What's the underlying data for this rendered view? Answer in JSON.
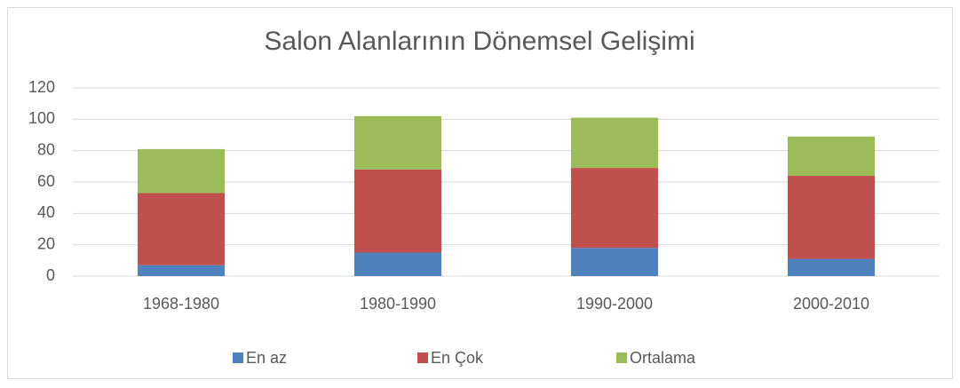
{
  "chart_data": {
    "type": "stacked_bar",
    "title": "Salon Alanlarının Dönemsel Gelişimi",
    "categories": [
      "1968-1980",
      "1980-1990",
      "1990-2000",
      "2000-2010"
    ],
    "series": [
      {
        "name": "En az",
        "color": "#4f81bd",
        "values": [
          7,
          15,
          18,
          11
        ]
      },
      {
        "name": "En Çok",
        "color": "#c0504d",
        "values": [
          46,
          53,
          51,
          53
        ]
      },
      {
        "name": "Ortalama",
        "color": "#9bbb59",
        "values": [
          28,
          34,
          32,
          25
        ]
      }
    ],
    "ylim": [
      0,
      120
    ],
    "yticks": [
      0,
      20,
      40,
      60,
      80,
      100,
      120
    ],
    "grid": true,
    "legend": "bottom"
  }
}
